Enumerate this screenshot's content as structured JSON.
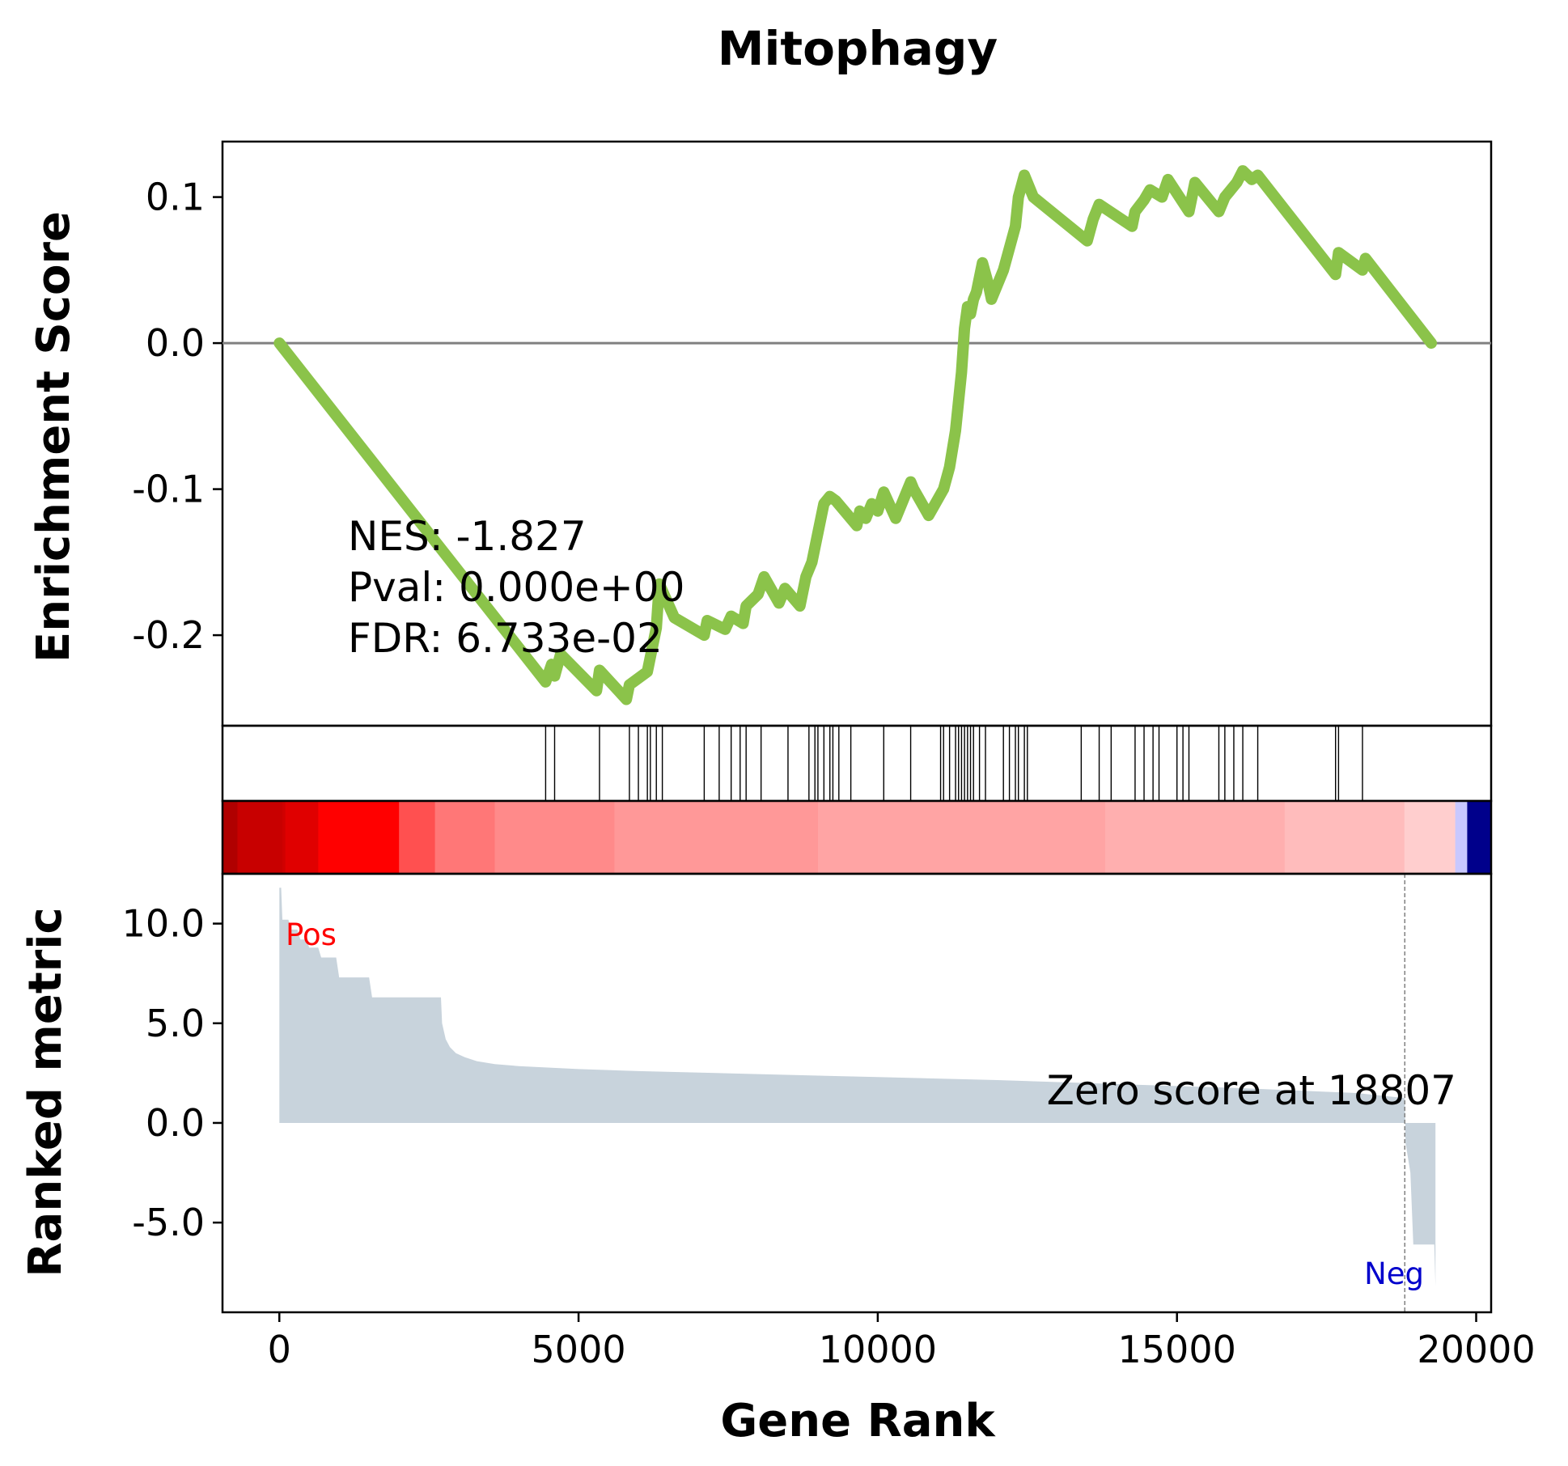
{
  "chart_data": {
    "type": "line",
    "title": "Mitophagy",
    "xlabel": "Gene Rank",
    "xlim": [
      -950,
      20250
    ],
    "xticks": [
      0,
      5000,
      10000,
      15000,
      20000
    ],
    "xtick_labels": [
      "0",
      "5000",
      "10000",
      "15000",
      "20000"
    ],
    "enrichment": {
      "ylabel": "Enrichment Score",
      "ylim": [
        -0.262,
        0.138
      ],
      "yticks": [
        0.1,
        0.0,
        -0.1,
        -0.2
      ],
      "ytick_labels": [
        "0.1",
        "0.0",
        "-0.1",
        "-0.2"
      ],
      "zero_line": true,
      "line_color": "#8bc34a",
      "stats": [
        "NES: -1.827",
        "Pval: 0.000e+00",
        "FDR: 6.733e-02"
      ],
      "x": [
        0,
        4450,
        4550,
        4600,
        4700,
        5300,
        5350,
        5800,
        5850,
        6150,
        6200,
        6250,
        6300,
        6350,
        6600,
        7100,
        7150,
        7450,
        7550,
        7750,
        7800,
        8000,
        8100,
        8350,
        8450,
        8700,
        8800,
        8900,
        9000,
        9100,
        9200,
        9300,
        9650,
        9700,
        9800,
        9900,
        10000,
        10100,
        10300,
        10550,
        10600,
        10850,
        11100,
        11200,
        11300,
        11400,
        11450,
        11500,
        11550,
        11600,
        11650,
        11700,
        11750,
        11850,
        11900,
        12100,
        12200,
        12300,
        12350,
        12450,
        12600,
        13500,
        13600,
        13700,
        14250,
        14300,
        14450,
        14550,
        14750,
        14850,
        15200,
        15300,
        15700,
        15800,
        15900,
        16000,
        16100,
        16250,
        16350,
        17650,
        17700,
        18100,
        18150,
        19250
      ],
      "y": [
        0.0,
        -0.232,
        -0.22,
        -0.228,
        -0.213,
        -0.238,
        -0.224,
        -0.244,
        -0.234,
        -0.225,
        -0.215,
        -0.205,
        -0.195,
        -0.165,
        -0.188,
        -0.2,
        -0.19,
        -0.196,
        -0.187,
        -0.192,
        -0.18,
        -0.172,
        -0.16,
        -0.178,
        -0.168,
        -0.18,
        -0.16,
        -0.15,
        -0.13,
        -0.11,
        -0.105,
        -0.108,
        -0.125,
        -0.115,
        -0.12,
        -0.11,
        -0.115,
        -0.102,
        -0.12,
        -0.095,
        -0.1,
        -0.118,
        -0.1,
        -0.085,
        -0.06,
        -0.02,
        0.01,
        0.025,
        0.02,
        0.03,
        0.035,
        0.045,
        0.055,
        0.04,
        0.03,
        0.05,
        0.065,
        0.08,
        0.1,
        0.115,
        0.1,
        0.07,
        0.085,
        0.095,
        0.08,
        0.09,
        0.098,
        0.105,
        0.1,
        0.112,
        0.09,
        0.11,
        0.09,
        0.1,
        0.105,
        0.11,
        0.118,
        0.112,
        0.115,
        0.047,
        0.062,
        0.05,
        0.058,
        0.0
      ]
    },
    "hits": {
      "positions": [
        4450,
        4600,
        5350,
        5850,
        6000,
        6150,
        6200,
        6300,
        6400,
        7100,
        7350,
        7550,
        7700,
        7800,
        8050,
        8500,
        8850,
        8950,
        9000,
        9100,
        9200,
        9250,
        9350,
        9550,
        10100,
        10550,
        11050,
        11100,
        11200,
        11300,
        11350,
        11400,
        11450,
        11500,
        11550,
        11600,
        11700,
        11800,
        12100,
        12200,
        12300,
        12350,
        12450,
        12500,
        13400,
        13700,
        13900,
        14300,
        14450,
        14600,
        14700,
        15000,
        15100,
        15200,
        15700,
        15800,
        15950,
        16100,
        16350,
        17650,
        17700,
        18100
      ]
    },
    "colorbar": {
      "segments": [
        {
          "x0": -950,
          "x1": -700,
          "color": "#b00000"
        },
        {
          "x0": -700,
          "x1": 50,
          "color": "#c80000"
        },
        {
          "x0": 50,
          "x1": 100,
          "color": "#d00000"
        },
        {
          "x0": 100,
          "x1": 650,
          "color": "#e00000"
        },
        {
          "x0": 650,
          "x1": 2000,
          "color": "#ff0000"
        },
        {
          "x0": 2000,
          "x1": 2600,
          "color": "#ff5050"
        },
        {
          "x0": 2600,
          "x1": 3600,
          "color": "#ff7777"
        },
        {
          "x0": 3600,
          "x1": 5600,
          "color": "#ff8a8a"
        },
        {
          "x0": 5600,
          "x1": 9000,
          "color": "#ff9898"
        },
        {
          "x0": 9000,
          "x1": 13800,
          "color": "#ffa4a4"
        },
        {
          "x0": 13800,
          "x1": 16800,
          "color": "#ffafaf"
        },
        {
          "x0": 16800,
          "x1": 18800,
          "color": "#ffbcbc"
        },
        {
          "x0": 18800,
          "x1": 19650,
          "color": "#ffcece"
        },
        {
          "x0": 19650,
          "x1": 19850,
          "color": "#c8c8ff"
        },
        {
          "x0": 19850,
          "x1": 20250,
          "color": "#00008b"
        }
      ]
    },
    "ranked_metric": {
      "ylabel": "Ranked metric",
      "ylim": [
        -9.5,
        12.5
      ],
      "yticks": [
        10.0,
        5.0,
        0.0,
        -5.0
      ],
      "ytick_labels": [
        "10.0",
        "5.0",
        "0.0",
        "-5.0"
      ],
      "fill_color": "#c8d3dc",
      "x": [
        0,
        30,
        50,
        150,
        200,
        300,
        350,
        450,
        500,
        650,
        700,
        950,
        1000,
        1500,
        1550,
        2700,
        2720,
        2780,
        2850,
        2950,
        3100,
        3300,
        3600,
        4000,
        5000,
        6000,
        8000,
        10000,
        12000,
        14000,
        16000,
        18000,
        18807,
        18820,
        18900,
        18950,
        19300,
        19320
      ],
      "y": [
        11.8,
        11.8,
        10.2,
        10.2,
        9.7,
        9.7,
        9.2,
        9.2,
        8.8,
        8.8,
        8.3,
        8.3,
        7.3,
        7.3,
        6.3,
        6.3,
        5.0,
        4.2,
        3.8,
        3.5,
        3.3,
        3.1,
        2.95,
        2.85,
        2.7,
        2.6,
        2.45,
        2.3,
        2.15,
        1.95,
        1.75,
        1.5,
        1.25,
        -1.0,
        -2.5,
        -6.1,
        -6.1,
        -8.2
      ],
      "zero_score_rank": 18807,
      "zero_score_label": "Zero score at 18807",
      "pos_label": "Pos",
      "pos_color": "#ff0000",
      "neg_label": "Neg",
      "neg_color": "#0000cc"
    }
  }
}
